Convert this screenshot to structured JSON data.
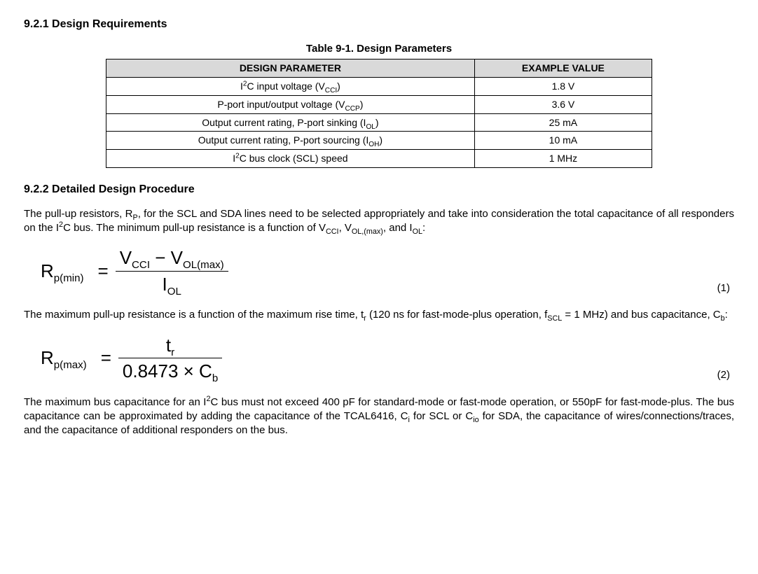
{
  "section1": {
    "heading": "9.2.1 Design Requirements",
    "table_caption": "Table 9-1. Design Parameters",
    "table": {
      "col1_header": "DESIGN PARAMETER",
      "col2_header": "EXAMPLE VALUE",
      "rows": [
        {
          "param_html": "I<sup class='small'>2</sup>C input voltage (V<sub class='small'>CCI</sub>)",
          "value": "1.8 V"
        },
        {
          "param_html": "P-port input/output voltage (V<sub class='small'>CCP</sub>)",
          "value": "3.6 V"
        },
        {
          "param_html": "Output current rating, P-port sinking (I<sub class='small'>OL</sub>)",
          "value": "25 mA"
        },
        {
          "param_html": "Output current rating, P-port sourcing (I<sub class='small'>OH</sub>)",
          "value": "10 mA"
        },
        {
          "param_html": "I<sup class='small'>2</sup>C bus clock (SCL) speed",
          "value": "1 MHz"
        }
      ]
    }
  },
  "section2": {
    "heading": "9.2.2 Detailed Design Procedure",
    "para1_html": "The pull-up resistors, R<sub class='small'>P</sub>, for the SCL and SDA lines need to be selected appropriately and take into consideration the total capacitance of all responders on the I<sup class='small'>2</sup>C bus. The minimum pull-up resistance is a function of V<sub class='small'>CCI</sub>, V<sub class='small'>OL,(max)</sub>, and I<sub class='small'>OL</sub>:",
    "eq1": {
      "lhs_html": "R<sub>p(min)</sub>",
      "num_html": "V<sub>CCI</sub> &minus; V<sub>OL(max)</sub>",
      "den_html": "I<sub>OL</sub>",
      "number": "(1)"
    },
    "para2_html": "The maximum pull-up resistance is a function of the maximum rise time, t<sub class='small'>r</sub> (120 ns for fast-mode-plus operation, f<sub class='small'>SCL</sub> = 1 MHz) and bus capacitance, C<sub class='small'>b</sub>:",
    "eq2": {
      "lhs_html": "R<sub>p(max)</sub>",
      "num_html": "t<sub>r</sub>",
      "den_html": "0.8473 &times; C<sub>b</sub>",
      "number": "(2)"
    },
    "para3_html": "The maximum bus capacitance for an I<sup class='small'>2</sup>C bus must not exceed 400 pF for standard-mode or fast-mode operation, or 550pF for fast-mode-plus. The bus capacitance can be approximated by adding the capacitance of the TCAL6416, C<sub class='small'>i</sub> for SCL or C<sub class='small'>io</sub> for SDA, the capacitance of wires/connections/traces, and the capacitance of additional responders on the bus."
  }
}
